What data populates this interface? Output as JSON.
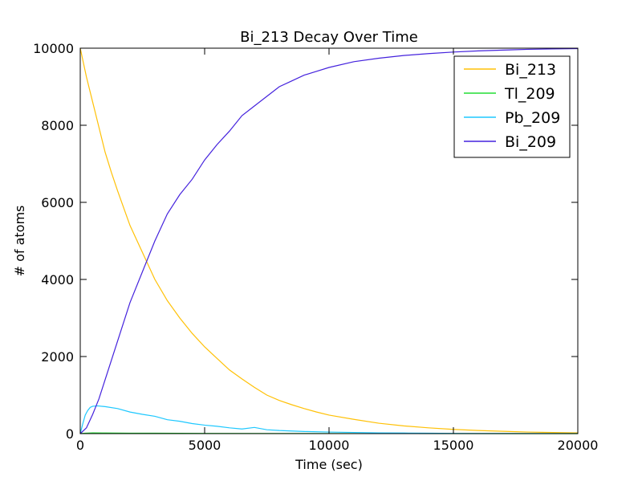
{
  "chart_data": {
    "type": "line",
    "title": "Bi_213 Decay Over Time",
    "xlabel": "Time (sec)",
    "ylabel": "# of atoms",
    "xlim": [
      0,
      20000
    ],
    "ylim": [
      0,
      10000
    ],
    "x_ticks": [
      0,
      5000,
      10000,
      15000,
      20000
    ],
    "y_ticks": [
      0,
      2000,
      4000,
      6000,
      8000,
      10000
    ],
    "x_tick_labels": [
      "0",
      "5000",
      "10000",
      "15000",
      "20000"
    ],
    "y_tick_labels": [
      "0",
      "2000",
      "4000",
      "6000",
      "8000",
      "10000"
    ],
    "grid": false,
    "legend_position": "top-right",
    "series": [
      {
        "name": "Bi_213",
        "color": "#ffc107",
        "points": [
          [
            0,
            10000
          ],
          [
            250,
            9250
          ],
          [
            500,
            8600
          ],
          [
            750,
            7950
          ],
          [
            1000,
            7300
          ],
          [
            1250,
            6780
          ],
          [
            1500,
            6300
          ],
          [
            2000,
            5400
          ],
          [
            2500,
            4700
          ],
          [
            3000,
            4000
          ],
          [
            3500,
            3450
          ],
          [
            4000,
            3000
          ],
          [
            4500,
            2600
          ],
          [
            5000,
            2250
          ],
          [
            5500,
            1950
          ],
          [
            6000,
            1650
          ],
          [
            6500,
            1420
          ],
          [
            7000,
            1200
          ],
          [
            7500,
            1000
          ],
          [
            8000,
            860
          ],
          [
            8500,
            750
          ],
          [
            9000,
            650
          ],
          [
            9500,
            560
          ],
          [
            10000,
            480
          ],
          [
            11000,
            370
          ],
          [
            12000,
            270
          ],
          [
            13000,
            200
          ],
          [
            14000,
            150
          ],
          [
            15000,
            110
          ],
          [
            16000,
            80
          ],
          [
            17000,
            60
          ],
          [
            18000,
            40
          ],
          [
            19000,
            28
          ],
          [
            20000,
            20
          ]
        ]
      },
      {
        "name": "Tl_209",
        "color": "#22dd33",
        "points": [
          [
            0,
            0
          ],
          [
            200,
            10
          ],
          [
            500,
            18
          ],
          [
            1000,
            15
          ],
          [
            2000,
            12
          ],
          [
            3000,
            10
          ],
          [
            5000,
            6
          ],
          [
            8000,
            3
          ],
          [
            12000,
            1
          ],
          [
            20000,
            0
          ]
        ]
      },
      {
        "name": "Pb_209",
        "color": "#1ec8ff",
        "points": [
          [
            0,
            0
          ],
          [
            100,
            250
          ],
          [
            200,
            480
          ],
          [
            300,
            600
          ],
          [
            400,
            680
          ],
          [
            500,
            710
          ],
          [
            700,
            720
          ],
          [
            1000,
            700
          ],
          [
            1500,
            650
          ],
          [
            2000,
            560
          ],
          [
            2500,
            500
          ],
          [
            3000,
            450
          ],
          [
            3500,
            360
          ],
          [
            4000,
            320
          ],
          [
            4500,
            260
          ],
          [
            5000,
            220
          ],
          [
            5500,
            190
          ],
          [
            6000,
            150
          ],
          [
            6500,
            120
          ],
          [
            7000,
            160
          ],
          [
            7500,
            100
          ],
          [
            8000,
            80
          ],
          [
            9000,
            55
          ],
          [
            10000,
            40
          ],
          [
            11000,
            30
          ],
          [
            12000,
            20
          ],
          [
            13000,
            15
          ],
          [
            14000,
            10
          ],
          [
            15000,
            6
          ],
          [
            16000,
            4
          ],
          [
            18000,
            2
          ],
          [
            20000,
            1
          ]
        ]
      },
      {
        "name": "Bi_209",
        "color": "#4422dd",
        "points": [
          [
            0,
            0
          ],
          [
            250,
            150
          ],
          [
            500,
            500
          ],
          [
            750,
            900
          ],
          [
            1000,
            1400
          ],
          [
            1250,
            1900
          ],
          [
            1500,
            2400
          ],
          [
            1750,
            2900
          ],
          [
            2000,
            3400
          ],
          [
            2500,
            4200
          ],
          [
            3000,
            5000
          ],
          [
            3500,
            5700
          ],
          [
            4000,
            6200
          ],
          [
            4500,
            6600
          ],
          [
            5000,
            7100
          ],
          [
            5500,
            7500
          ],
          [
            6000,
            7850
          ],
          [
            6500,
            8250
          ],
          [
            7000,
            8500
          ],
          [
            7500,
            8750
          ],
          [
            8000,
            9000
          ],
          [
            8500,
            9150
          ],
          [
            9000,
            9300
          ],
          [
            9500,
            9400
          ],
          [
            10000,
            9500
          ],
          [
            11000,
            9650
          ],
          [
            12000,
            9740
          ],
          [
            13000,
            9810
          ],
          [
            14000,
            9860
          ],
          [
            15000,
            9900
          ],
          [
            16000,
            9930
          ],
          [
            17000,
            9950
          ],
          [
            18000,
            9970
          ],
          [
            19000,
            9980
          ],
          [
            20000,
            9990
          ]
        ]
      }
    ]
  }
}
